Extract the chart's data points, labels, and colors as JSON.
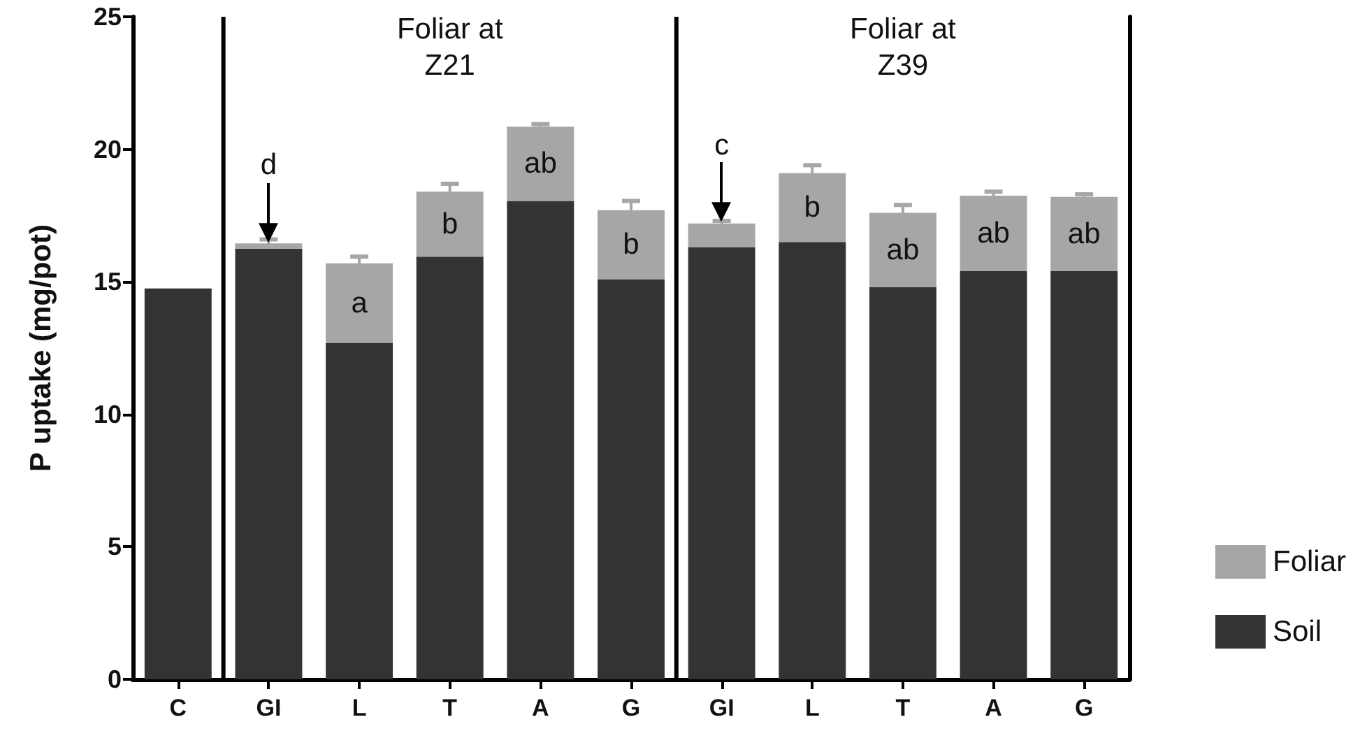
{
  "chart_data": {
    "type": "bar",
    "stacked": true,
    "ylabel": "P uptake (mg/pot)",
    "categories": [
      "C",
      "GI",
      "L",
      "T",
      "A",
      "G",
      "GI",
      "L",
      "T",
      "A",
      "G"
    ],
    "series": [
      {
        "name": "Soil",
        "color": "#333333",
        "values": [
          14.75,
          16.25,
          12.7,
          15.95,
          18.05,
          15.1,
          16.3,
          16.5,
          14.8,
          15.4,
          15.4
        ]
      },
      {
        "name": "Foliar",
        "color": "#a6a6a6",
        "values": [
          null,
          0.2,
          3.0,
          2.45,
          2.8,
          2.6,
          0.9,
          2.6,
          2.8,
          2.85,
          2.8
        ],
        "errors": [
          null,
          0.15,
          0.25,
          0.3,
          0.1,
          0.35,
          0.1,
          0.3,
          0.3,
          0.15,
          0.1
        ],
        "value_labels": [
          null,
          "d",
          "a",
          "b",
          "ab",
          "b",
          "c",
          "b",
          "ab",
          "ab",
          "ab"
        ]
      }
    ],
    "ylim": [
      0,
      25
    ],
    "yticks": [
      0,
      5,
      10,
      15,
      20,
      25
    ],
    "grid": false,
    "legend": "right",
    "annotations": [
      "Foliar at\nZ21",
      "Foliar at\nZ39"
    ]
  }
}
